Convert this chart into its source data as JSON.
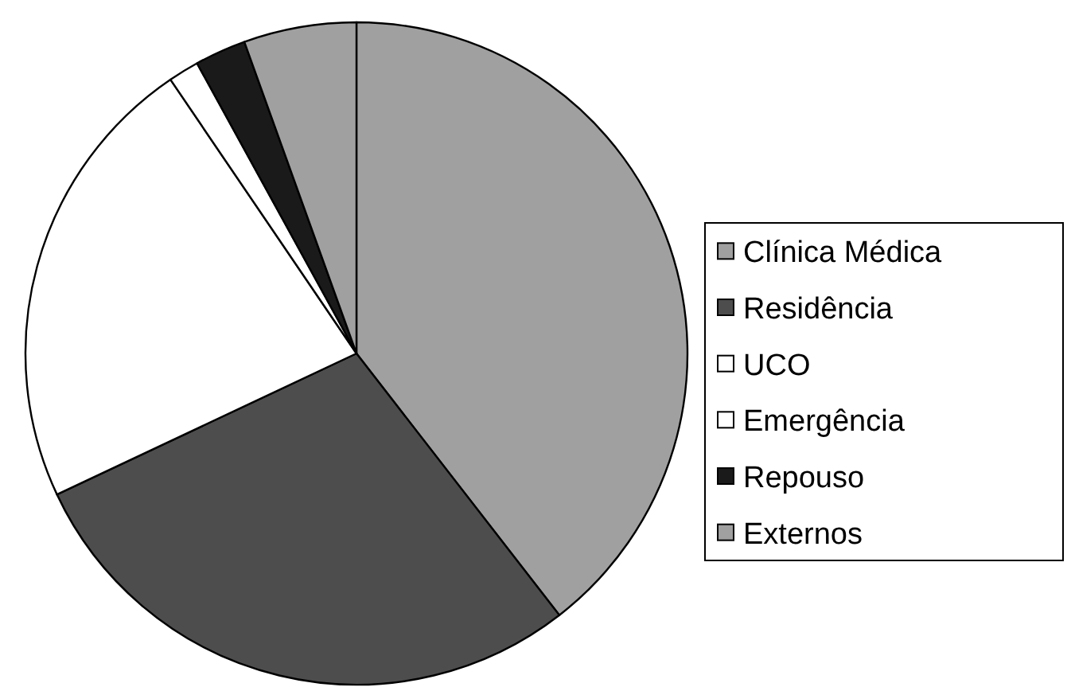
{
  "chart_data": {
    "type": "pie",
    "categories": [
      "Clínica Médica",
      "Residência",
      "UCO",
      "Emergência",
      "Repouso",
      "Externos"
    ],
    "values": [
      39.5,
      28.5,
      22.5,
      1.5,
      2.5,
      5.5
    ],
    "colors": [
      "#a0a0a0",
      "#4d4d4d",
      "#ffffff",
      "#ffffff",
      "#1a1a1a",
      "#a0a0a0"
    ],
    "legend": "right"
  }
}
